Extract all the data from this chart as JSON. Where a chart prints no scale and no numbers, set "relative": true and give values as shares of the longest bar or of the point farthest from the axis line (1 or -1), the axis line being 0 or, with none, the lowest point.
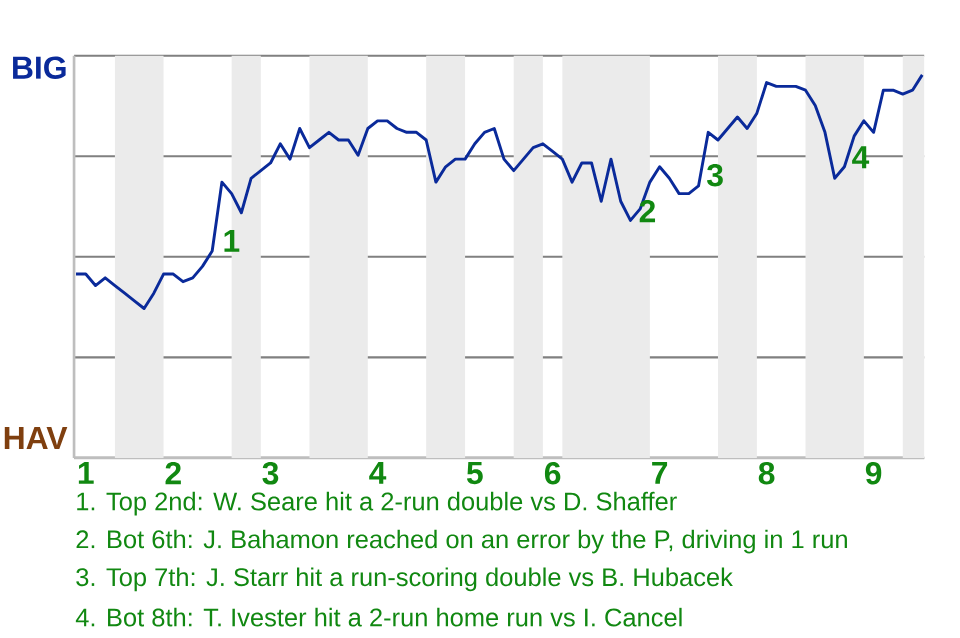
{
  "chart_data": {
    "type": "line",
    "relative": true,
    "categories": [
      null,
      "1",
      null,
      null,
      null,
      null,
      null,
      null,
      null,
      null,
      "2",
      null,
      null,
      null,
      null,
      null,
      null,
      null,
      null,
      null,
      "3",
      null,
      null,
      null,
      null,
      null,
      null,
      null,
      null,
      null,
      null,
      "4",
      null,
      null,
      null,
      null,
      null,
      null,
      null,
      null,
      null,
      "5",
      null,
      null,
      null,
      null,
      null,
      null,
      null,
      "6",
      null,
      null,
      null,
      null,
      null,
      null,
      null,
      null,
      null,
      null,
      "7",
      null,
      null,
      null,
      null,
      null,
      null,
      null,
      null,
      null,
      null,
      "8",
      null,
      null,
      null,
      null,
      null,
      null,
      null,
      null,
      null,
      null,
      "9",
      null,
      null,
      null,
      null,
      null
    ],
    "series": [
      {
        "color": "#0a2a9a",
        "values": [
          0.48,
          0.48,
          0.45,
          0.47,
          0.45,
          0.43,
          0.41,
          0.39,
          0.43,
          0.48,
          0.48,
          0.46,
          0.47,
          0.5,
          0.54,
          0.72,
          0.69,
          0.64,
          0.73,
          0.75,
          0.77,
          0.82,
          0.78,
          0.86,
          0.81,
          0.83,
          0.85,
          0.83,
          0.83,
          0.79,
          0.86,
          0.88,
          0.88,
          0.86,
          0.85,
          0.85,
          0.83,
          0.72,
          0.76,
          0.78,
          0.78,
          0.82,
          0.85,
          0.86,
          0.78,
          0.75,
          0.78,
          0.81,
          0.82,
          0.8,
          0.78,
          0.72,
          0.77,
          0.77,
          0.67,
          0.78,
          0.67,
          0.62,
          0.65,
          0.72,
          0.76,
          0.73,
          0.69,
          0.69,
          0.71,
          0.85,
          0.83,
          0.86,
          0.89,
          0.86,
          0.9,
          0.98,
          0.97,
          0.97,
          0.97,
          0.96,
          0.92,
          0.85,
          0.73,
          0.76,
          0.84,
          0.88,
          0.85,
          0.96,
          0.96,
          0.95,
          0.96,
          1
        ]
      }
    ],
    "grid": "y",
    "annotations": [
      "BIG",
      "HAV",
      "1",
      "2",
      "3",
      "4",
      "1. Top 2nd: W. Seare hit a 2-run double vs D. Shaffer",
      "2. Bot 6th: J. Bahamon reached on an error by the P, driving in 1 run",
      "3. Top 7th: J. Starr hit a run-scoring double vs B. Hubacek",
      "4. Bot 8th: T. Ivester hit a 2-run home run vs I. Cancel"
    ]
  }
}
